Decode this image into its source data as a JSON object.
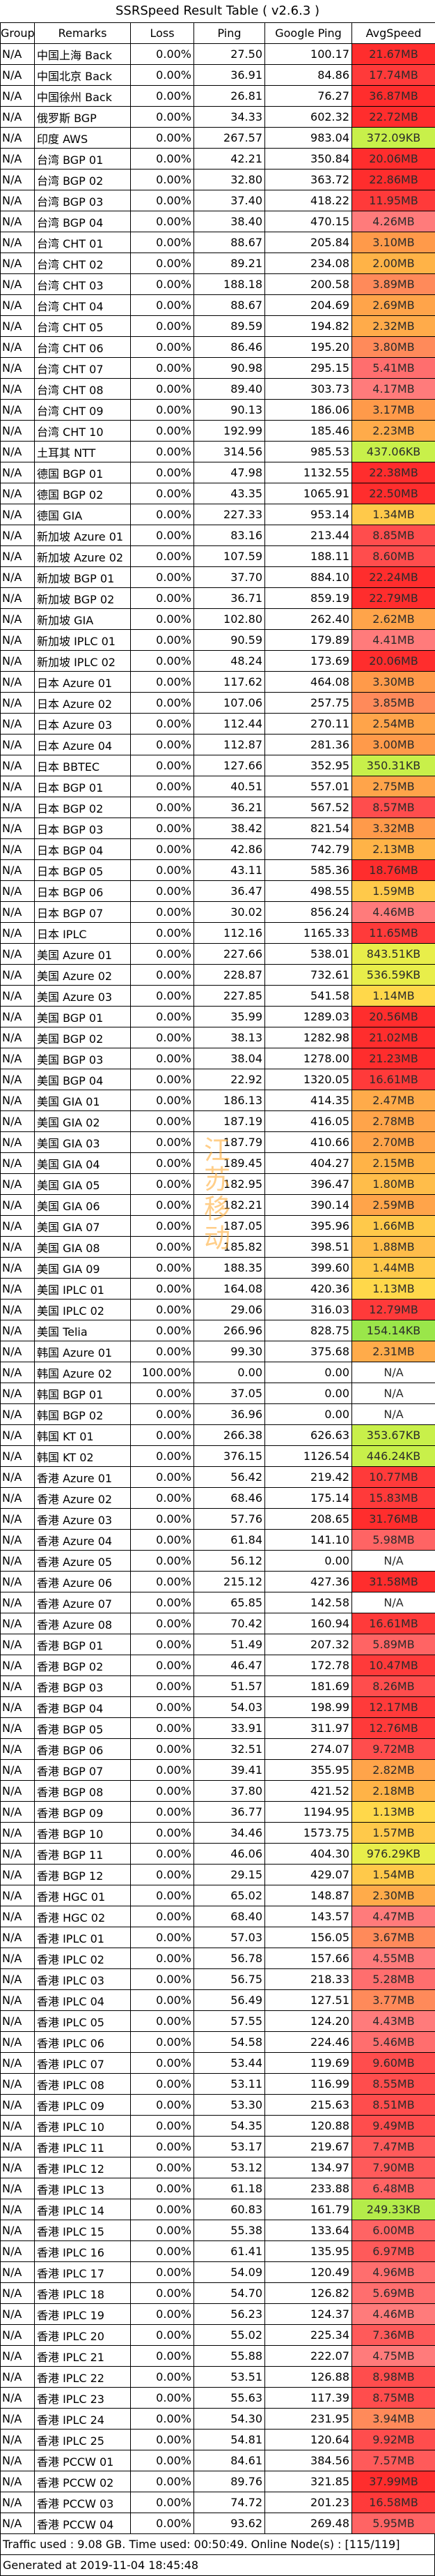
{
  "title": "SSRSpeed Result Table ( v2.6.3 )",
  "headers": [
    "Group",
    "Remarks",
    "Loss",
    "Ping",
    "Google Ping",
    "AvgSpeed"
  ],
  "rows": [
    [
      "N/A",
      "中国上海 Back",
      "0.00%",
      "27.50",
      "100.17",
      "21.67MB",
      "#ff2d2d"
    ],
    [
      "N/A",
      "中国北京 Back",
      "0.00%",
      "36.91",
      "84.86",
      "17.74MB",
      "#ff3a3a"
    ],
    [
      "N/A",
      "中国徐州 Back",
      "0.00%",
      "26.81",
      "76.27",
      "36.87MB",
      "#ff2d2d"
    ],
    [
      "N/A",
      "俄罗斯 BGP",
      "0.00%",
      "34.33",
      "602.32",
      "22.72MB",
      "#ff2d2d"
    ],
    [
      "N/A",
      "印度 AWS",
      "0.00%",
      "267.57",
      "983.04",
      "372.09KB",
      "#c8f04a"
    ],
    [
      "N/A",
      "台湾 BGP 01",
      "0.00%",
      "42.21",
      "350.84",
      "20.06MB",
      "#ff2d2d"
    ],
    [
      "N/A",
      "台湾 BGP 02",
      "0.00%",
      "32.80",
      "363.72",
      "22.86MB",
      "#ff2d2d"
    ],
    [
      "N/A",
      "台湾 BGP 03",
      "0.00%",
      "37.40",
      "418.22",
      "11.95MB",
      "#ff3a3a"
    ],
    [
      "N/A",
      "台湾 BGP 04",
      "0.00%",
      "38.40",
      "470.15",
      "4.26MB",
      "#ff7b7b"
    ],
    [
      "N/A",
      "台湾 CHT 01",
      "0.00%",
      "88.67",
      "205.84",
      "3.10MB",
      "#ff9a4a"
    ],
    [
      "N/A",
      "台湾 CHT 02",
      "0.00%",
      "89.21",
      "234.08",
      "2.00MB",
      "#ffb347"
    ],
    [
      "N/A",
      "台湾 CHT 03",
      "0.00%",
      "188.18",
      "200.58",
      "3.89MB",
      "#ff8a5a"
    ],
    [
      "N/A",
      "台湾 CHT 04",
      "0.00%",
      "88.67",
      "204.69",
      "2.69MB",
      "#ffa44a"
    ],
    [
      "N/A",
      "台湾 CHT 05",
      "0.00%",
      "89.59",
      "194.82",
      "2.32MB",
      "#ffab4a"
    ],
    [
      "N/A",
      "台湾 CHT 06",
      "0.00%",
      "86.46",
      "195.20",
      "3.80MB",
      "#ff8a5a"
    ],
    [
      "N/A",
      "台湾 CHT 07",
      "0.00%",
      "90.98",
      "295.15",
      "5.41MB",
      "#ff6e6e"
    ],
    [
      "N/A",
      "台湾 CHT 08",
      "0.00%",
      "89.40",
      "303.73",
      "4.17MB",
      "#ff7b7b"
    ],
    [
      "N/A",
      "台湾 CHT 09",
      "0.00%",
      "90.13",
      "186.06",
      "3.17MB",
      "#ff9a4a"
    ],
    [
      "N/A",
      "台湾 CHT 10",
      "0.00%",
      "192.99",
      "185.46",
      "2.23MB",
      "#ffab4a"
    ],
    [
      "N/A",
      "土耳其 NTT",
      "0.00%",
      "314.56",
      "985.53",
      "437.06KB",
      "#c8f04a"
    ],
    [
      "N/A",
      "德国 BGP 01",
      "0.00%",
      "47.98",
      "1132.55",
      "22.38MB",
      "#ff2d2d"
    ],
    [
      "N/A",
      "德国 BGP 02",
      "0.00%",
      "43.35",
      "1065.91",
      "22.50MB",
      "#ff2d2d"
    ],
    [
      "N/A",
      "德国 GIA",
      "0.00%",
      "227.33",
      "953.14",
      "1.34MB",
      "#ffc94a"
    ],
    [
      "N/A",
      "新加坡 Azure 01",
      "0.00%",
      "83.16",
      "213.44",
      "8.85MB",
      "#ff4d4d"
    ],
    [
      "N/A",
      "新加坡 Azure 02",
      "0.00%",
      "107.59",
      "188.11",
      "8.60MB",
      "#ff4d4d"
    ],
    [
      "N/A",
      "新加坡 BGP 01",
      "0.00%",
      "37.70",
      "884.10",
      "22.24MB",
      "#ff2d2d"
    ],
    [
      "N/A",
      "新加坡 BGP 02",
      "0.00%",
      "36.71",
      "859.19",
      "22.79MB",
      "#ff2d2d"
    ],
    [
      "N/A",
      "新加坡 GIA",
      "0.00%",
      "102.80",
      "262.40",
      "2.62MB",
      "#ffa44a"
    ],
    [
      "N/A",
      "新加坡 IPLC 01",
      "0.00%",
      "90.59",
      "179.89",
      "4.41MB",
      "#ff7b7b"
    ],
    [
      "N/A",
      "新加坡 IPLC 02",
      "0.00%",
      "48.24",
      "173.69",
      "20.06MB",
      "#ff2d2d"
    ],
    [
      "N/A",
      "日本 Azure 01",
      "0.00%",
      "117.62",
      "464.08",
      "3.30MB",
      "#ff9a4a"
    ],
    [
      "N/A",
      "日本 Azure 02",
      "0.00%",
      "107.06",
      "257.75",
      "3.85MB",
      "#ff8a5a"
    ],
    [
      "N/A",
      "日本 Azure 03",
      "0.00%",
      "112.44",
      "270.11",
      "2.54MB",
      "#ffa44a"
    ],
    [
      "N/A",
      "日本 Azure 04",
      "0.00%",
      "112.87",
      "281.36",
      "3.00MB",
      "#ff9a4a"
    ],
    [
      "N/A",
      "日本 BBTEC",
      "0.00%",
      "127.66",
      "352.95",
      "350.31KB",
      "#c8f04a"
    ],
    [
      "N/A",
      "日本 BGP 01",
      "0.00%",
      "40.51",
      "557.01",
      "2.75MB",
      "#ffa44a"
    ],
    [
      "N/A",
      "日本 BGP 02",
      "0.00%",
      "36.21",
      "567.52",
      "8.57MB",
      "#ff4d4d"
    ],
    [
      "N/A",
      "日本 BGP 03",
      "0.00%",
      "38.42",
      "821.54",
      "3.32MB",
      "#ff9a4a"
    ],
    [
      "N/A",
      "日本 BGP 04",
      "0.00%",
      "42.86",
      "742.79",
      "2.13MB",
      "#ffb347"
    ],
    [
      "N/A",
      "日本 BGP 05",
      "0.00%",
      "43.11",
      "585.36",
      "18.76MB",
      "#ff2d2d"
    ],
    [
      "N/A",
      "日本 BGP 06",
      "0.00%",
      "36.47",
      "498.55",
      "1.59MB",
      "#ffc94a"
    ],
    [
      "N/A",
      "日本 BGP 07",
      "0.00%",
      "30.02",
      "856.24",
      "4.46MB",
      "#ff7b7b"
    ],
    [
      "N/A",
      "日本 IPLC",
      "0.00%",
      "112.16",
      "1165.33",
      "11.65MB",
      "#ff3a3a"
    ],
    [
      "N/A",
      "美国 Azure 01",
      "0.00%",
      "227.66",
      "538.01",
      "843.51KB",
      "#e8ee4a"
    ],
    [
      "N/A",
      "美国 Azure 02",
      "0.00%",
      "228.87",
      "732.61",
      "536.59KB",
      "#e8ee4a"
    ],
    [
      "N/A",
      "美国 Azure 03",
      "0.00%",
      "227.85",
      "541.58",
      "1.14MB",
      "#ffd84a"
    ],
    [
      "N/A",
      "美国 BGP 01",
      "0.00%",
      "35.99",
      "1289.03",
      "20.56MB",
      "#ff2d2d"
    ],
    [
      "N/A",
      "美国 BGP 02",
      "0.00%",
      "38.13",
      "1282.98",
      "21.02MB",
      "#ff2d2d"
    ],
    [
      "N/A",
      "美国 BGP 03",
      "0.00%",
      "38.04",
      "1278.00",
      "21.23MB",
      "#ff2d2d"
    ],
    [
      "N/A",
      "美国 BGP 04",
      "0.00%",
      "22.92",
      "1320.05",
      "16.61MB",
      "#ff3a3a"
    ],
    [
      "N/A",
      "美国 GIA 01",
      "0.00%",
      "186.13",
      "414.35",
      "2.47MB",
      "#ffab4a"
    ],
    [
      "N/A",
      "美国 GIA 02",
      "0.00%",
      "187.19",
      "416.05",
      "2.78MB",
      "#ffa44a"
    ],
    [
      "N/A",
      "美国 GIA 03",
      "0.00%",
      "187.79",
      "410.66",
      "2.70MB",
      "#ffa44a"
    ],
    [
      "N/A",
      "美国 GIA 04",
      "0.00%",
      "189.45",
      "404.27",
      "2.15MB",
      "#ffb347"
    ],
    [
      "N/A",
      "美国 GIA 05",
      "0.00%",
      "182.95",
      "396.47",
      "1.80MB",
      "#ffbd4a"
    ],
    [
      "N/A",
      "美国 GIA 06",
      "0.00%",
      "182.21",
      "390.14",
      "2.59MB",
      "#ffa44a"
    ],
    [
      "N/A",
      "美国 GIA 07",
      "0.00%",
      "187.05",
      "395.96",
      "1.66MB",
      "#ffc94a"
    ],
    [
      "N/A",
      "美国 GIA 08",
      "0.00%",
      "185.82",
      "398.51",
      "1.88MB",
      "#ffbd4a"
    ],
    [
      "N/A",
      "美国 GIA 09",
      "0.00%",
      "188.35",
      "399.60",
      "1.44MB",
      "#ffc94a"
    ],
    [
      "N/A",
      "美国 IPLC 01",
      "0.00%",
      "164.08",
      "420.36",
      "1.13MB",
      "#ffd84a"
    ],
    [
      "N/A",
      "美国 IPLC 02",
      "0.00%",
      "29.06",
      "316.03",
      "12.79MB",
      "#ff3a3a"
    ],
    [
      "N/A",
      "美国 Telia",
      "0.00%",
      "266.96",
      "828.75",
      "154.14KB",
      "#9ae64a"
    ],
    [
      "N/A",
      "韩国 Azure 01",
      "0.00%",
      "99.30",
      "375.68",
      "2.31MB",
      "#ffab4a"
    ],
    [
      "N/A",
      "韩国 Azure 02",
      "100.00%",
      "0.00",
      "0.00",
      "N/A",
      "#ffffff"
    ],
    [
      "N/A",
      "韩国 BGP 01",
      "0.00%",
      "37.05",
      "0.00",
      "N/A",
      "#ffffff"
    ],
    [
      "N/A",
      "韩国 BGP 02",
      "0.00%",
      "36.96",
      "0.00",
      "N/A",
      "#ffffff"
    ],
    [
      "N/A",
      "韩国 KT 01",
      "0.00%",
      "266.38",
      "626.63",
      "353.67KB",
      "#c8f04a"
    ],
    [
      "N/A",
      "韩国 KT 02",
      "0.00%",
      "376.15",
      "1126.54",
      "446.24KB",
      "#c8f04a"
    ],
    [
      "N/A",
      "香港 Azure 01",
      "0.00%",
      "56.42",
      "219.42",
      "10.77MB",
      "#ff3a3a"
    ],
    [
      "N/A",
      "香港 Azure 02",
      "0.00%",
      "68.46",
      "175.14",
      "15.83MB",
      "#ff3a3a"
    ],
    [
      "N/A",
      "香港 Azure 03",
      "0.00%",
      "57.76",
      "208.65",
      "31.76MB",
      "#ff2d2d"
    ],
    [
      "N/A",
      "香港 Azure 04",
      "0.00%",
      "61.84",
      "141.10",
      "5.98MB",
      "#ff6464"
    ],
    [
      "N/A",
      "香港 Azure 05",
      "0.00%",
      "56.12",
      "0.00",
      "N/A",
      "#ffffff"
    ],
    [
      "N/A",
      "香港 Azure 06",
      "0.00%",
      "215.12",
      "427.36",
      "31.58MB",
      "#ff2d2d"
    ],
    [
      "N/A",
      "香港 Azure 07",
      "0.00%",
      "65.85",
      "142.58",
      "N/A",
      "#ffffff"
    ],
    [
      "N/A",
      "香港 Azure 08",
      "0.00%",
      "70.42",
      "160.94",
      "16.61MB",
      "#ff3a3a"
    ],
    [
      "N/A",
      "香港 BGP 01",
      "0.00%",
      "51.49",
      "207.32",
      "5.89MB",
      "#ff6464"
    ],
    [
      "N/A",
      "香港 BGP 02",
      "0.00%",
      "46.47",
      "172.78",
      "10.47MB",
      "#ff3a3a"
    ],
    [
      "N/A",
      "香港 BGP 03",
      "0.00%",
      "51.57",
      "181.69",
      "8.26MB",
      "#ff4d4d"
    ],
    [
      "N/A",
      "香港 BGP 04",
      "0.00%",
      "54.03",
      "198.99",
      "12.17MB",
      "#ff3a3a"
    ],
    [
      "N/A",
      "香港 BGP 05",
      "0.00%",
      "33.91",
      "311.97",
      "12.76MB",
      "#ff3a3a"
    ],
    [
      "N/A",
      "香港 BGP 06",
      "0.00%",
      "32.51",
      "274.07",
      "9.72MB",
      "#ff4d4d"
    ],
    [
      "N/A",
      "香港 BGP 07",
      "0.00%",
      "39.41",
      "355.95",
      "2.82MB",
      "#ffa44a"
    ],
    [
      "N/A",
      "香港 BGP 08",
      "0.00%",
      "37.80",
      "421.52",
      "2.18MB",
      "#ffb347"
    ],
    [
      "N/A",
      "香港 BGP 09",
      "0.00%",
      "36.77",
      "1194.95",
      "1.13MB",
      "#ffd84a"
    ],
    [
      "N/A",
      "香港 BGP 10",
      "0.00%",
      "34.46",
      "1573.75",
      "1.57MB",
      "#ffc94a"
    ],
    [
      "N/A",
      "香港 BGP 11",
      "0.00%",
      "46.06",
      "404.30",
      "976.29KB",
      "#e8ee4a"
    ],
    [
      "N/A",
      "香港 BGP 12",
      "0.00%",
      "29.15",
      "429.07",
      "1.54MB",
      "#ffc94a"
    ],
    [
      "N/A",
      "香港 HGC 01",
      "0.00%",
      "65.02",
      "148.87",
      "2.30MB",
      "#ffab4a"
    ],
    [
      "N/A",
      "香港 HGC 02",
      "0.00%",
      "68.40",
      "143.57",
      "4.47MB",
      "#ff7b7b"
    ],
    [
      "N/A",
      "香港 IPLC 01",
      "0.00%",
      "57.03",
      "156.05",
      "3.67MB",
      "#ff8a5a"
    ],
    [
      "N/A",
      "香港 IPLC 02",
      "0.00%",
      "56.78",
      "157.66",
      "4.55MB",
      "#ff7b7b"
    ],
    [
      "N/A",
      "香港 IPLC 03",
      "0.00%",
      "56.75",
      "218.33",
      "5.28MB",
      "#ff6e6e"
    ],
    [
      "N/A",
      "香港 IPLC 04",
      "0.00%",
      "56.49",
      "127.51",
      "3.77MB",
      "#ff8a5a"
    ],
    [
      "N/A",
      "香港 IPLC 05",
      "0.00%",
      "57.55",
      "124.20",
      "4.43MB",
      "#ff7b7b"
    ],
    [
      "N/A",
      "香港 IPLC 06",
      "0.00%",
      "54.58",
      "224.46",
      "5.46MB",
      "#ff6e6e"
    ],
    [
      "N/A",
      "香港 IPLC 07",
      "0.00%",
      "53.44",
      "119.69",
      "9.60MB",
      "#ff4d4d"
    ],
    [
      "N/A",
      "香港 IPLC 08",
      "0.00%",
      "53.11",
      "116.99",
      "8.55MB",
      "#ff4d4d"
    ],
    [
      "N/A",
      "香港 IPLC 09",
      "0.00%",
      "53.30",
      "215.63",
      "8.51MB",
      "#ff4d4d"
    ],
    [
      "N/A",
      "香港 IPLC 10",
      "0.00%",
      "54.35",
      "120.88",
      "9.49MB",
      "#ff4d4d"
    ],
    [
      "N/A",
      "香港 IPLC 11",
      "0.00%",
      "53.17",
      "219.67",
      "7.47MB",
      "#ff5a5a"
    ],
    [
      "N/A",
      "香港 IPLC 12",
      "0.00%",
      "53.12",
      "134.97",
      "7.90MB",
      "#ff5a5a"
    ],
    [
      "N/A",
      "香港 IPLC 13",
      "0.00%",
      "61.18",
      "233.88",
      "6.48MB",
      "#ff6464"
    ],
    [
      "N/A",
      "香港 IPLC 14",
      "0.00%",
      "60.83",
      "161.79",
      "249.33KB",
      "#b4ec4a"
    ],
    [
      "N/A",
      "香港 IPLC 15",
      "0.00%",
      "55.38",
      "133.64",
      "6.00MB",
      "#ff6464"
    ],
    [
      "N/A",
      "香港 IPLC 16",
      "0.00%",
      "61.41",
      "135.95",
      "6.97MB",
      "#ff5a5a"
    ],
    [
      "N/A",
      "香港 IPLC 17",
      "0.00%",
      "54.09",
      "120.49",
      "4.96MB",
      "#ff6e6e"
    ],
    [
      "N/A",
      "香港 IPLC 18",
      "0.00%",
      "54.70",
      "126.82",
      "5.69MB",
      "#ff6e6e"
    ],
    [
      "N/A",
      "香港 IPLC 19",
      "0.00%",
      "56.23",
      "124.37",
      "4.46MB",
      "#ff7b7b"
    ],
    [
      "N/A",
      "香港 IPLC 20",
      "0.00%",
      "55.02",
      "225.34",
      "7.36MB",
      "#ff5a5a"
    ],
    [
      "N/A",
      "香港 IPLC 21",
      "0.00%",
      "55.88",
      "222.07",
      "4.75MB",
      "#ff7b7b"
    ],
    [
      "N/A",
      "香港 IPLC 22",
      "0.00%",
      "53.51",
      "126.88",
      "8.98MB",
      "#ff4d4d"
    ],
    [
      "N/A",
      "香港 IPLC 23",
      "0.00%",
      "55.63",
      "117.39",
      "8.75MB",
      "#ff4d4d"
    ],
    [
      "N/A",
      "香港 IPLC 24",
      "0.00%",
      "54.30",
      "231.95",
      "3.94MB",
      "#ff8a5a"
    ],
    [
      "N/A",
      "香港 IPLC 25",
      "0.00%",
      "54.81",
      "120.64",
      "9.92MB",
      "#ff4d4d"
    ],
    [
      "N/A",
      "香港 PCCW 01",
      "0.00%",
      "84.61",
      "384.56",
      "7.57MB",
      "#ff5a5a"
    ],
    [
      "N/A",
      "香港 PCCW 02",
      "0.00%",
      "89.76",
      "321.85",
      "37.99MB",
      "#ff2d2d"
    ],
    [
      "N/A",
      "香港 PCCW 03",
      "0.00%",
      "74.72",
      "201.23",
      "16.58MB",
      "#ff3a3a"
    ],
    [
      "N/A",
      "香港 PCCW 04",
      "0.00%",
      "93.62",
      "269.48",
      "5.95MB",
      "#ff6464"
    ]
  ],
  "footer": {
    "traffic": "Traffic used : 9.08 GB. Time used: 00:50:49. Online Node(s) : [115/119]",
    "generated": "Generated at 2019-11-04 18:45:48"
  },
  "watermark": "江苏移动"
}
